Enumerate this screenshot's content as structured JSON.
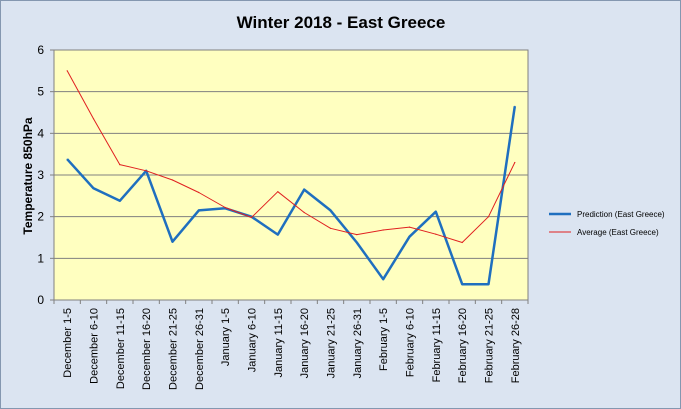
{
  "chart_data": {
    "type": "line",
    "title": "Winter 2018 - East Greece",
    "xlabel": "",
    "ylabel": "Temperature 850hPa",
    "ylim": [
      0,
      6
    ],
    "yticks": [
      0,
      1,
      2,
      3,
      4,
      5,
      6
    ],
    "grid": true,
    "legend_position": "right",
    "plot_background": "#ffffc0",
    "categories": [
      "December 1-5",
      "December 6-10",
      "December 11-15",
      "December 16-20",
      "December 21-25",
      "December 26-31",
      "January 1-5",
      "January 6-10",
      "January 11-15",
      "January 16-20",
      "January 21-25",
      "January 26-31",
      "February 1-5",
      "February 6-10",
      "February 11-15",
      "February 16-20",
      "February 21-25",
      "February 26-28"
    ],
    "series": [
      {
        "name": "Prediction (East Greece)",
        "color": "#1f6fbf",
        "values": [
          3.38,
          2.68,
          2.38,
          3.1,
          1.4,
          2.15,
          2.2,
          2.0,
          1.57,
          2.65,
          2.15,
          1.38,
          0.5,
          1.52,
          2.12,
          0.38,
          0.38,
          4.65
        ]
      },
      {
        "name": "Average (East Greece)",
        "color": "#e02020",
        "values": [
          5.5,
          4.35,
          3.25,
          3.1,
          2.88,
          2.58,
          2.22,
          1.98,
          2.6,
          2.1,
          1.72,
          1.57,
          1.68,
          1.75,
          1.58,
          1.38,
          2.0,
          3.3
        ]
      }
    ]
  }
}
